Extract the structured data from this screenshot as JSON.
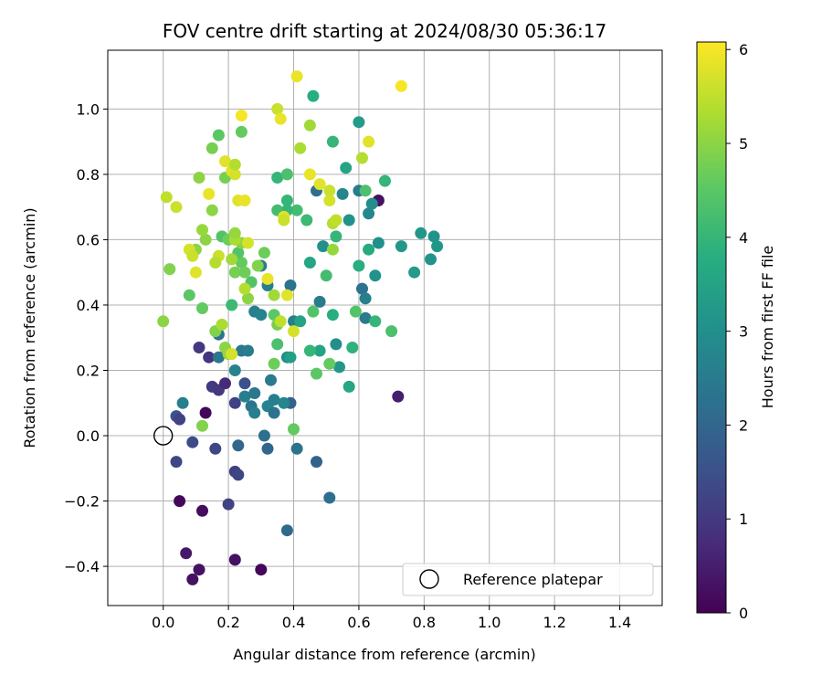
{
  "chart_data": {
    "type": "scatter",
    "title": "FOV centre drift starting at 2024/08/30 05:36:17",
    "xlabel": "Angular distance from reference (arcmin)",
    "ylabel": "Rotation from reference (arcmin)",
    "xlim": [
      -0.17,
      1.53
    ],
    "ylim": [
      -0.52,
      1.18
    ],
    "xticks": [
      0.0,
      0.2,
      0.4,
      0.6,
      0.8,
      1.0,
      1.2,
      1.4
    ],
    "xtick_labels": [
      "0.0",
      "0.2",
      "0.4",
      "0.6",
      "0.8",
      "1.0",
      "1.2",
      "1.4"
    ],
    "yticks": [
      -0.4,
      -0.2,
      0.0,
      0.2,
      0.4,
      0.6,
      0.8,
      1.0
    ],
    "ytick_labels": [
      "−0.4",
      "−0.2",
      "0.0",
      "0.2",
      "0.4",
      "0.6",
      "0.8",
      "1.0"
    ],
    "grid": true,
    "colorbar": {
      "label": "Hours from first FF file",
      "range": [
        0,
        6.08
      ],
      "ticks": [
        0,
        1,
        2,
        3,
        4,
        5,
        6
      ],
      "tick_labels": [
        "0",
        "1",
        "2",
        "3",
        "4",
        "5",
        "6"
      ],
      "colormap": "viridis"
    },
    "legend": {
      "placement": "lower-right",
      "entries": [
        {
          "label": "Reference platepar",
          "marker": "open-circle"
        }
      ]
    },
    "reference_point": {
      "x": 0.0,
      "y": 0.0
    },
    "points": [
      [
        0.05,
        -0.2,
        0.1
      ],
      [
        0.07,
        -0.36,
        0.4
      ],
      [
        0.09,
        -0.44,
        0.3
      ],
      [
        0.11,
        -0.41,
        0.3
      ],
      [
        0.12,
        -0.23,
        0.2
      ],
      [
        0.13,
        0.07,
        0.1
      ],
      [
        0.22,
        -0.38,
        0.3
      ],
      [
        0.3,
        -0.41,
        0.1
      ],
      [
        0.72,
        0.12,
        0.5
      ],
      [
        0.66,
        0.72,
        0.3
      ],
      [
        0.2,
        -0.21,
        1.2
      ],
      [
        0.04,
        -0.08,
        1.3
      ],
      [
        0.09,
        -0.02,
        1.4
      ],
      [
        0.04,
        0.06,
        1.5
      ],
      [
        0.05,
        0.05,
        1.2
      ],
      [
        0.11,
        0.27,
        1.0
      ],
      [
        0.14,
        0.24,
        0.9
      ],
      [
        0.15,
        0.15,
        1.0
      ],
      [
        0.17,
        0.14,
        1.0
      ],
      [
        0.19,
        0.16,
        0.7
      ],
      [
        0.22,
        0.1,
        1.2
      ],
      [
        0.22,
        -0.11,
        1.1
      ],
      [
        0.23,
        -0.12,
        1.3
      ],
      [
        0.16,
        -0.04,
        1.3
      ],
      [
        0.23,
        -0.03,
        2.0
      ],
      [
        0.25,
        0.16,
        1.5
      ],
      [
        0.31,
        0.0,
        2.2
      ],
      [
        0.32,
        -0.04,
        2.0
      ],
      [
        0.39,
        0.1,
        1.9
      ],
      [
        0.47,
        -0.08,
        1.9
      ],
      [
        0.51,
        -0.19,
        2.2
      ],
      [
        0.38,
        -0.29,
        2.1
      ],
      [
        0.41,
        -0.04,
        2.3
      ],
      [
        0.06,
        0.1,
        2.6
      ],
      [
        0.17,
        0.24,
        2.4
      ],
      [
        0.17,
        0.31,
        2.3
      ],
      [
        0.22,
        0.2,
        2.7
      ],
      [
        0.24,
        0.26,
        2.4
      ],
      [
        0.25,
        0.12,
        2.6
      ],
      [
        0.27,
        0.09,
        2.3
      ],
      [
        0.28,
        0.13,
        2.4
      ],
      [
        0.28,
        0.07,
        2.6
      ],
      [
        0.26,
        0.26,
        2.5
      ],
      [
        0.32,
        0.09,
        2.7
      ],
      [
        0.33,
        0.17,
        2.5
      ],
      [
        0.34,
        0.11,
        2.6
      ],
      [
        0.34,
        0.07,
        2.3
      ],
      [
        0.37,
        0.1,
        2.8
      ],
      [
        0.38,
        0.24,
        2.9
      ],
      [
        0.28,
        0.38,
        2.6
      ],
      [
        0.3,
        0.37,
        2.7
      ],
      [
        0.32,
        0.46,
        2.6
      ],
      [
        0.3,
        0.52,
        2.5
      ],
      [
        0.39,
        0.46,
        2.3
      ],
      [
        0.4,
        0.35,
        2.6
      ],
      [
        0.48,
        0.41,
        2.5
      ],
      [
        0.47,
        0.75,
        2.2
      ],
      [
        0.55,
        0.74,
        2.8
      ],
      [
        0.6,
        0.75,
        2.5
      ],
      [
        0.61,
        0.45,
        2.3
      ],
      [
        0.62,
        0.42,
        2.6
      ],
      [
        0.62,
        0.36,
        2.5
      ],
      [
        0.63,
        0.68,
        2.8
      ],
      [
        0.64,
        0.71,
        3.0
      ],
      [
        0.65,
        0.49,
        3.1
      ],
      [
        0.66,
        0.59,
        3.0
      ],
      [
        0.6,
        0.96,
        3.3
      ],
      [
        0.57,
        0.66,
        3.1
      ],
      [
        0.49,
        0.58,
        3.0
      ],
      [
        0.53,
        0.28,
        3.0
      ],
      [
        0.54,
        0.21,
        3.2
      ],
      [
        0.57,
        0.15,
        3.6
      ],
      [
        0.48,
        0.26,
        3.5
      ],
      [
        0.39,
        0.24,
        3.4
      ],
      [
        0.42,
        0.35,
        3.5
      ],
      [
        0.45,
        0.53,
        3.6
      ],
      [
        0.46,
        1.04,
        3.8
      ],
      [
        0.56,
        0.82,
        3.5
      ],
      [
        0.73,
        0.58,
        3.2
      ],
      [
        0.77,
        0.5,
        3.3
      ],
      [
        0.79,
        0.62,
        3.2
      ],
      [
        0.82,
        0.54,
        3.1
      ],
      [
        0.83,
        0.61,
        3.1
      ],
      [
        0.84,
        0.58,
        3.2
      ],
      [
        0.63,
        0.57,
        3.7
      ],
      [
        0.6,
        0.52,
        3.8
      ],
      [
        0.58,
        0.27,
        3.9
      ],
      [
        0.59,
        0.38,
        4.4
      ],
      [
        0.65,
        0.35,
        4.0
      ],
      [
        0.7,
        0.32,
        4.3
      ],
      [
        0.68,
        0.78,
        4.0
      ],
      [
        0.62,
        0.75,
        4.3
      ],
      [
        0.53,
        0.61,
        4.0
      ],
      [
        0.52,
        0.37,
        3.8
      ],
      [
        0.5,
        0.49,
        4.2
      ],
      [
        0.46,
        0.38,
        4.4
      ],
      [
        0.45,
        0.26,
        4.0
      ],
      [
        0.47,
        0.19,
        4.5
      ],
      [
        0.51,
        0.22,
        4.6
      ],
      [
        0.52,
        0.9,
        4.0
      ],
      [
        0.44,
        0.66,
        4.1
      ],
      [
        0.41,
        0.69,
        4.2
      ],
      [
        0.38,
        0.72,
        4.0
      ],
      [
        0.38,
        0.69,
        4.0
      ],
      [
        0.35,
        0.69,
        4.2
      ],
      [
        0.35,
        0.79,
        4.0
      ],
      [
        0.38,
        0.8,
        4.3
      ],
      [
        0.35,
        0.28,
        4.3
      ],
      [
        0.34,
        0.37,
        4.5
      ],
      [
        0.35,
        0.34,
        4.8
      ],
      [
        0.34,
        0.22,
        4.7
      ],
      [
        0.4,
        0.02,
        4.6
      ],
      [
        0.21,
        0.4,
        4.1
      ],
      [
        0.27,
        0.47,
        4.4
      ],
      [
        0.29,
        0.52,
        4.9
      ],
      [
        0.31,
        0.56,
        4.7
      ],
      [
        0.24,
        0.53,
        4.6
      ],
      [
        0.23,
        0.56,
        4.4
      ],
      [
        0.22,
        0.5,
        4.8
      ],
      [
        0.25,
        0.5,
        4.7
      ],
      [
        0.26,
        0.42,
        5.0
      ],
      [
        0.25,
        0.45,
        5.4
      ],
      [
        0.18,
        0.61,
        4.4
      ],
      [
        0.17,
        0.92,
        4.5
      ],
      [
        0.15,
        0.88,
        4.8
      ],
      [
        0.24,
        0.93,
        4.6
      ],
      [
        0.19,
        0.79,
        4.8
      ],
      [
        0.2,
        0.6,
        4.7
      ],
      [
        0.21,
        0.54,
        5.2
      ],
      [
        0.24,
        0.59,
        5.0
      ],
      [
        0.22,
        0.6,
        5.3
      ],
      [
        0.22,
        0.62,
        5.1
      ],
      [
        0.17,
        0.55,
        5.6
      ],
      [
        0.16,
        0.53,
        5.4
      ],
      [
        0.15,
        0.69,
        5.0
      ],
      [
        0.13,
        0.6,
        5.0
      ],
      [
        0.1,
        0.57,
        5.0
      ],
      [
        0.12,
        0.63,
        5.1
      ],
      [
        0.11,
        0.79,
        5.0
      ],
      [
        0.08,
        0.43,
        4.5
      ],
      [
        0.12,
        0.39,
        4.6
      ],
      [
        0.16,
        0.32,
        4.9
      ],
      [
        0.18,
        0.34,
        5.3
      ],
      [
        0.19,
        0.27,
        5.0
      ],
      [
        0.2,
        0.25,
        5.1
      ],
      [
        0.21,
        0.25,
        5.7
      ],
      [
        0.12,
        0.03,
        4.9
      ],
      [
        0.02,
        0.51,
        4.9
      ],
      [
        0.0,
        0.35,
        5.0
      ],
      [
        0.01,
        0.73,
        5.5
      ],
      [
        0.04,
        0.7,
        5.6
      ],
      [
        0.08,
        0.57,
        5.7
      ],
      [
        0.09,
        0.55,
        5.6
      ],
      [
        0.1,
        0.5,
        5.8
      ],
      [
        0.14,
        0.74,
        5.9
      ],
      [
        0.19,
        0.84,
        5.8
      ],
      [
        0.21,
        0.81,
        5.8
      ],
      [
        0.22,
        0.8,
        5.7
      ],
      [
        0.22,
        0.83,
        5.4
      ],
      [
        0.23,
        0.72,
        5.8
      ],
      [
        0.25,
        0.72,
        5.9
      ],
      [
        0.26,
        0.59,
        5.7
      ],
      [
        0.24,
        0.98,
        6.0
      ],
      [
        0.35,
        1.0,
        5.6
      ],
      [
        0.36,
        0.97,
        5.9
      ],
      [
        0.37,
        0.67,
        5.8
      ],
      [
        0.37,
        0.66,
        5.6
      ],
      [
        0.34,
        0.43,
        5.2
      ],
      [
        0.36,
        0.35,
        5.5
      ],
      [
        0.38,
        0.43,
        5.8
      ],
      [
        0.4,
        0.32,
        5.7
      ],
      [
        0.32,
        0.48,
        5.9
      ],
      [
        0.42,
        0.88,
        5.3
      ],
      [
        0.45,
        0.8,
        5.9
      ],
      [
        0.45,
        0.95,
        5.2
      ],
      [
        0.48,
        0.77,
        5.8
      ],
      [
        0.51,
        0.72,
        5.7
      ],
      [
        0.52,
        0.57,
        5.1
      ],
      [
        0.52,
        0.65,
        5.4
      ],
      [
        0.53,
        0.66,
        5.5
      ],
      [
        0.61,
        0.85,
        5.4
      ],
      [
        0.63,
        0.9,
        5.8
      ],
      [
        0.41,
        1.1,
        5.9
      ],
      [
        0.73,
        1.07,
        6.0
      ],
      [
        0.51,
        0.75,
        5.6
      ]
    ]
  }
}
